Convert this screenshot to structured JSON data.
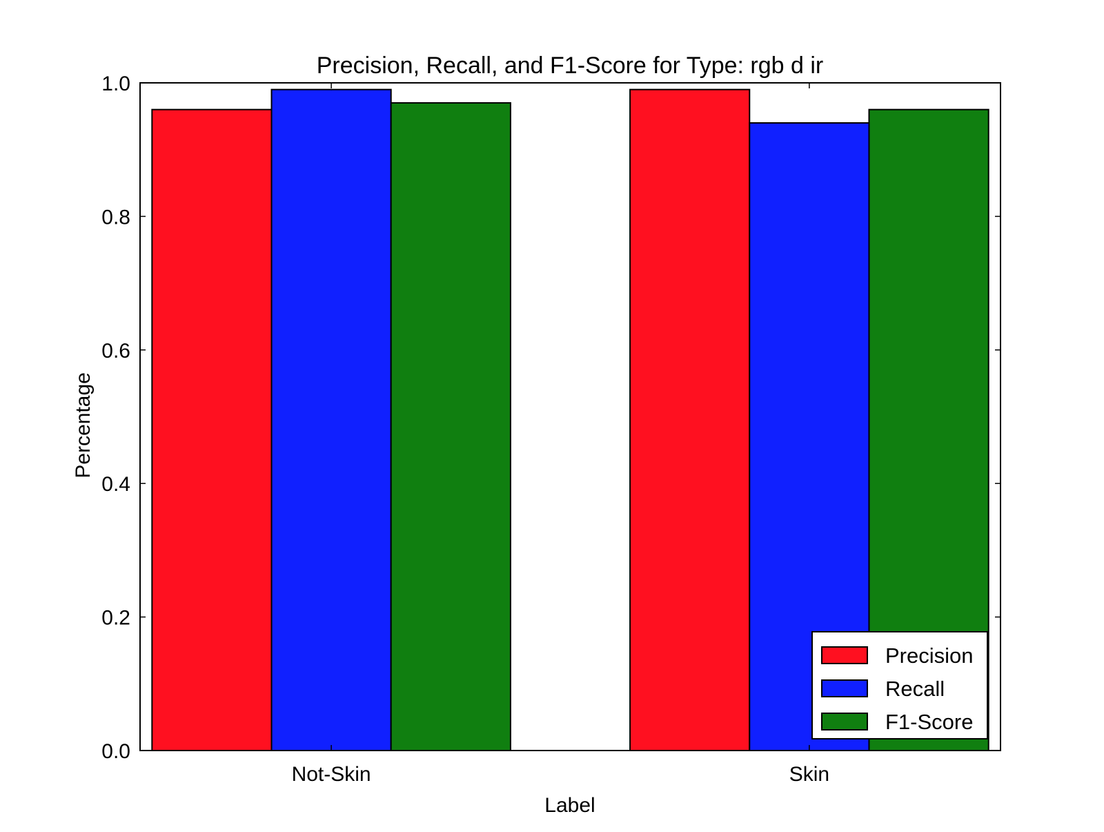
{
  "chart_data": {
    "type": "bar",
    "title": "Precision, Recall, and F1-Score for Type: rgb d ir",
    "xlabel": "Label",
    "ylabel": "Percentage",
    "categories": [
      "Not-Skin",
      "Skin"
    ],
    "series": [
      {
        "name": "Precision",
        "values": [
          0.96,
          0.99
        ],
        "color": "#ff1020"
      },
      {
        "name": "Recall",
        "values": [
          0.99,
          0.94
        ],
        "color": "#1020ff"
      },
      {
        "name": "F1-Score",
        "values": [
          0.97,
          0.96
        ],
        "color": "#107f10"
      }
    ],
    "ylim": [
      0,
      1.0
    ],
    "yticks": [
      "0.0",
      "0.2",
      "0.4",
      "0.6",
      "0.8",
      "1.0"
    ],
    "grid": false,
    "legend_position": "bottom-right"
  }
}
